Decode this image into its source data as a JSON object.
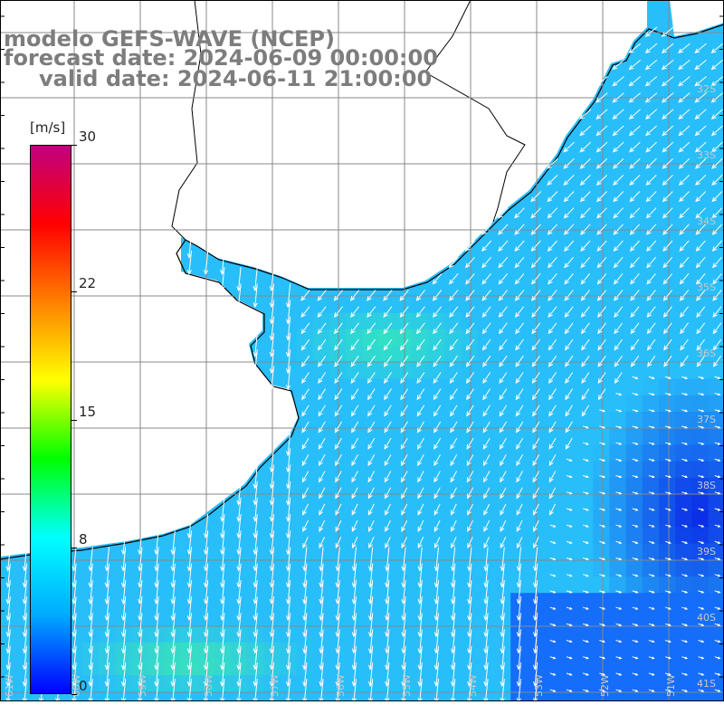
{
  "title": {
    "model": "modelo GEFS-WAVE (NCEP)",
    "forecast": "forecast date: 2024-06-09 00:00:00",
    "valid": "valid date: 2024-06-11 21:00:00"
  },
  "colorbar": {
    "unit": "[m/s]",
    "ticks": [
      "30",
      "22",
      "15",
      "8",
      "0"
    ],
    "tick_values": [
      30,
      22,
      15,
      8,
      0
    ],
    "min": 0,
    "max": 30,
    "colors": [
      "#0000ff",
      "#00aaff",
      "#00ffff",
      "#00ff00",
      "#ffff00",
      "#ff8000",
      "#ff0000",
      "#c00080"
    ]
  },
  "map": {
    "land_color": "#ffffff",
    "coast_color": "#000000",
    "grid_color": "#888888",
    "arrow_color": "#ffffff",
    "lat_labels": [
      "32S",
      "33S",
      "34S",
      "35S",
      "36S",
      "37S",
      "38S",
      "39S",
      "40S",
      "41S"
    ],
    "lon_labels": [
      "61W",
      "60W",
      "59W",
      "58W",
      "57W",
      "56W",
      "55W",
      "54W",
      "53W",
      "52W",
      "51W"
    ]
  }
}
